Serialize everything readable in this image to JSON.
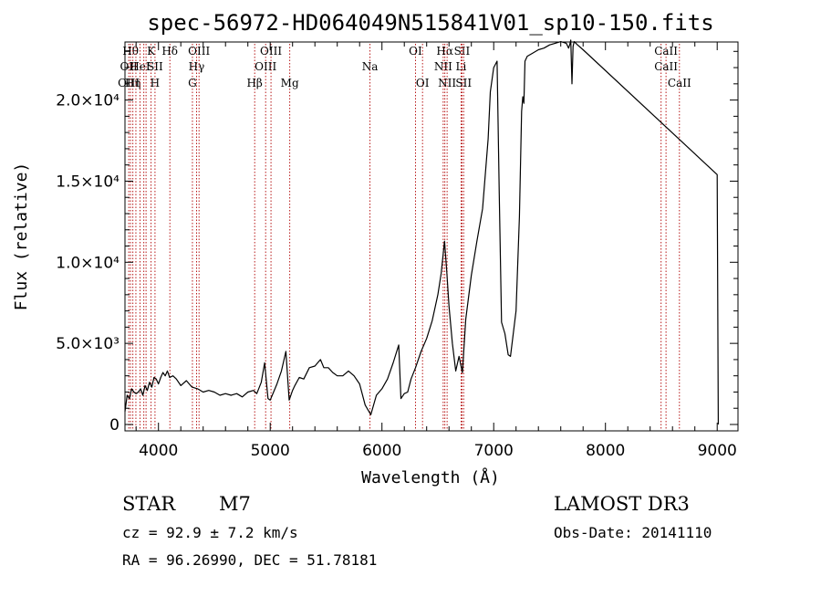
{
  "chart_data": {
    "type": "line",
    "title": "spec-56972-HD064049N515841V01_sp10-150.fits",
    "xlabel": "Wavelength (Å)",
    "ylabel": "Flux (relative)",
    "xlim": [
      3700,
      9100
    ],
    "ylim": [
      0,
      23000
    ],
    "xticks": [
      4000,
      5000,
      6000,
      7000,
      8000,
      9000
    ],
    "yticks": [
      {
        "value": 0,
        "label": "0"
      },
      {
        "value": 5000,
        "label": "5.0×10³"
      },
      {
        "value": 10000,
        "label": "1.0×10⁴"
      },
      {
        "value": 15000,
        "label": "1.5×10⁴"
      },
      {
        "value": 20000,
        "label": "2.0×10⁴"
      }
    ],
    "series": [
      {
        "name": "spectrum",
        "x": [
          3700,
          3720,
          3740,
          3760,
          3780,
          3800,
          3820,
          3840,
          3860,
          3880,
          3900,
          3920,
          3940,
          3960,
          3980,
          4000,
          4020,
          4040,
          4060,
          4080,
          4100,
          4130,
          4160,
          4200,
          4250,
          4300,
          4350,
          4400,
          4450,
          4500,
          4550,
          4600,
          4650,
          4700,
          4750,
          4800,
          4850,
          4880,
          4920,
          4950,
          4980,
          5000,
          5030,
          5060,
          5100,
          5140,
          5170,
          5200,
          5220,
          5260,
          5300,
          5350,
          5400,
          5450,
          5480,
          5520,
          5560,
          5600,
          5650,
          5700,
          5750,
          5800,
          5850,
          5900,
          5950,
          6000,
          6050,
          6100,
          6150,
          6170,
          6200,
          6230,
          6260,
          6300,
          6350,
          6400,
          6450,
          6500,
          6530,
          6560,
          6580,
          6600,
          6630,
          6660,
          6690,
          6720,
          6750,
          6800,
          6850,
          6900,
          6950,
          6970,
          7000,
          7030,
          7050,
          7070,
          7100,
          7130,
          7150,
          7170,
          7200,
          7230,
          7250,
          7260,
          7270,
          7280,
          7300,
          7350,
          7400,
          7450,
          7500,
          7550,
          7600,
          7650,
          7670,
          7680,
          7690,
          7700,
          7710,
          7720,
          7750,
          7800,
          9000,
          9010
        ],
        "values": [
          800,
          1800,
          1600,
          2200,
          2000,
          1900,
          2000,
          2200,
          1800,
          2400,
          2100,
          2600,
          2300,
          2900,
          2800,
          2500,
          2900,
          3200,
          3000,
          3300,
          2900,
          3000,
          2800,
          2400,
          2700,
          2300,
          2200,
          2000,
          2100,
          2000,
          1800,
          1900,
          1800,
          1900,
          1700,
          2000,
          2100,
          1900,
          2600,
          3800,
          1600,
          1500,
          2000,
          2500,
          3300,
          4500,
          1500,
          2100,
          2400,
          2900,
          2800,
          3500,
          3600,
          4000,
          3500,
          3500,
          3200,
          3000,
          3000,
          3300,
          3000,
          2500,
          1200,
          600,
          1800,
          2200,
          2800,
          3800,
          4900,
          1600,
          1900,
          2000,
          2800,
          3500,
          4500,
          5300,
          6400,
          8000,
          9300,
          11300,
          9400,
          7300,
          5000,
          3300,
          4200,
          3200,
          6500,
          9200,
          11300,
          13300,
          17600,
          20500,
          22000,
          22400,
          14200,
          6300,
          5600,
          4300,
          4200,
          5300,
          7000,
          12800,
          19300,
          20200,
          19800,
          22400,
          22700,
          22900,
          23100,
          23200,
          23400,
          23500,
          23600,
          23500,
          23200,
          23400,
          23700,
          21000,
          23300,
          23600,
          23400,
          23100,
          15400,
          0
        ]
      }
    ],
    "lines": [
      {
        "x": 3734,
        "labels": [
          "",
          "OII",
          "OIII"
        ]
      },
      {
        "x": 3750,
        "labels": [
          "Hθ",
          "",
          ""
        ]
      },
      {
        "x": 3771,
        "labels": [
          "",
          "",
          "Hη"
        ]
      },
      {
        "x": 3798,
        "labels": [
          "",
          "",
          ""
        ]
      },
      {
        "x": 3835,
        "labels": [
          "",
          "HeI",
          ""
        ]
      },
      {
        "x": 3869,
        "labels": [
          "",
          "",
          ""
        ]
      },
      {
        "x": 3889,
        "labels": [
          "",
          "",
          ""
        ]
      },
      {
        "x": 3934,
        "labels": [
          "K",
          "",
          ""
        ]
      },
      {
        "x": 3969,
        "labels": [
          "",
          "SII",
          "H"
        ]
      },
      {
        "x": 4102,
        "labels": [
          "Hδ",
          "",
          ""
        ]
      },
      {
        "x": 4304,
        "labels": [
          "",
          "",
          "G"
        ]
      },
      {
        "x": 4341,
        "labels": [
          "",
          "Hγ",
          ""
        ]
      },
      {
        "x": 4363,
        "labels": [
          "OIII",
          "",
          ""
        ]
      },
      {
        "x": 4861,
        "labels": [
          "",
          "",
          "Hβ"
        ]
      },
      {
        "x": 4959,
        "labels": [
          "",
          "OIII",
          ""
        ]
      },
      {
        "x": 5007,
        "labels": [
          "OIII",
          "",
          ""
        ]
      },
      {
        "x": 5175,
        "labels": [
          "",
          "",
          "Mg"
        ]
      },
      {
        "x": 5893,
        "labels": [
          "",
          "Na",
          ""
        ]
      },
      {
        "x": 6300,
        "labels": [
          "OI",
          "",
          ""
        ]
      },
      {
        "x": 6363,
        "labels": [
          "",
          "",
          "OI"
        ]
      },
      {
        "x": 6548,
        "labels": [
          "",
          "NII",
          ""
        ]
      },
      {
        "x": 6563,
        "labels": [
          "Hα",
          "",
          ""
        ]
      },
      {
        "x": 6583,
        "labels": [
          "",
          "",
          "NII"
        ]
      },
      {
        "x": 6708,
        "labels": [
          "",
          "Li",
          ""
        ]
      },
      {
        "x": 6716,
        "labels": [
          "SII",
          "",
          ""
        ]
      },
      {
        "x": 6731,
        "labels": [
          "",
          "",
          "SII"
        ]
      },
      {
        "x": 8498,
        "labels": [
          "",
          "",
          ""
        ]
      },
      {
        "x": 8542,
        "labels": [
          "CaII",
          "CaII",
          ""
        ]
      },
      {
        "x": 8662,
        "labels": [
          "",
          "",
          "CaII"
        ]
      }
    ]
  },
  "info": {
    "star": "STAR",
    "subclass": "M7",
    "survey": "LAMOST DR3",
    "cz": "cz = 92.9 ± 7.2 km/s",
    "obs_date": "Obs-Date: 20141110",
    "radec": "RA =  96.26990, DEC =  51.78181"
  }
}
